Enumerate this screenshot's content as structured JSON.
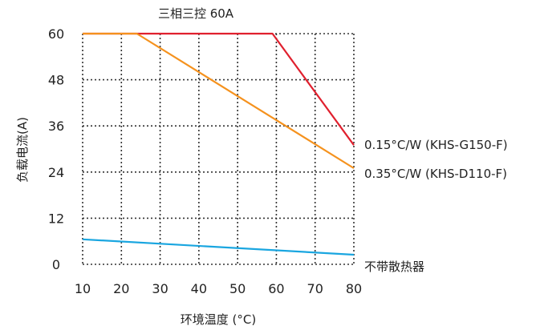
{
  "chart_data": {
    "type": "line",
    "title": "三相三控 60A",
    "xlabel": "环境温度 (°C)",
    "ylabel": "负载电流(A)",
    "xlim": [
      10,
      80
    ],
    "ylim": [
      0,
      60
    ],
    "xticks": [
      10,
      20,
      30,
      40,
      50,
      60,
      70,
      80
    ],
    "yticks": [
      0,
      12,
      24,
      36,
      48,
      60
    ],
    "grid": true,
    "grid_style": "dotted",
    "series": [
      {
        "name": "0.15°C/W (KHS-G150-F)",
        "color": "#e0202e",
        "x": [
          10,
          24,
          59,
          80
        ],
        "y": [
          60,
          60,
          60,
          31
        ]
      },
      {
        "name": "0.35°C/W (KHS-D110-F)",
        "color": "#f5921e",
        "x": [
          10,
          24,
          80
        ],
        "y": [
          60,
          60,
          25
        ]
      },
      {
        "name": "不带散热器",
        "color": "#1aa6e0",
        "x": [
          10,
          80
        ],
        "y": [
          6.5,
          2.5
        ]
      }
    ]
  }
}
